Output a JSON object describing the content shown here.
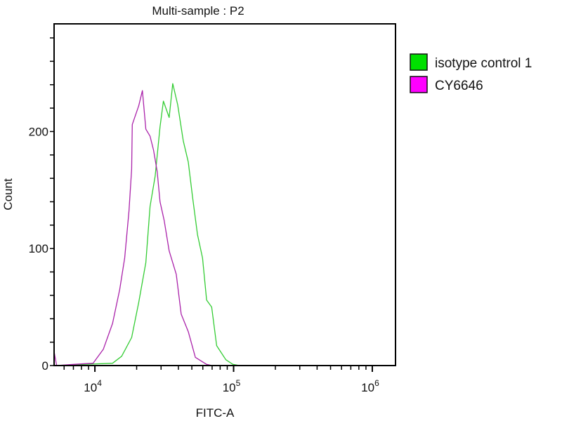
{
  "chart_data": {
    "type": "line",
    "title": "Multi-sample : P2",
    "xlabel": "FITC-A",
    "ylabel": "Count",
    "xscale": "log",
    "xlim": [
      5080,
      1470000
    ],
    "ylim": [
      0,
      292
    ],
    "x_major_ticks": [
      {
        "value": 10000,
        "base": "10",
        "exp": "4"
      },
      {
        "value": 100000,
        "base": "10",
        "exp": "5"
      },
      {
        "value": 1000000,
        "base": "10",
        "exp": "6"
      }
    ],
    "y_ticks": [
      {
        "value": 0,
        "label": "0"
      },
      {
        "value": 100,
        "label": "100"
      },
      {
        "value": 200,
        "label": "200"
      }
    ],
    "y_minor_step": 20,
    "grid": false,
    "legend_position": "right",
    "series": [
      {
        "name": "isotype control 1",
        "color": "#00e000",
        "line_color": "#33cc33",
        "points": [
          [
            5080,
            0
          ],
          [
            13400,
            2
          ],
          [
            15600,
            8
          ],
          [
            18400,
            24
          ],
          [
            20700,
            54
          ],
          [
            23300,
            88
          ],
          [
            25000,
            136
          ],
          [
            27200,
            162
          ],
          [
            29500,
            204
          ],
          [
            31200,
            226
          ],
          [
            34300,
            212
          ],
          [
            36400,
            241
          ],
          [
            39500,
            223
          ],
          [
            43400,
            192
          ],
          [
            47100,
            174
          ],
          [
            50600,
            144
          ],
          [
            54900,
            112
          ],
          [
            59700,
            92
          ],
          [
            63900,
            56
          ],
          [
            69500,
            50
          ],
          [
            75500,
            17
          ],
          [
            87900,
            5
          ],
          [
            98900,
            1
          ],
          [
            110000,
            0
          ],
          [
            1470000,
            0
          ]
        ]
      },
      {
        "name": "CY6646",
        "color": "#ff00ff",
        "line_color": "#aa22aa",
        "points": [
          [
            5080,
            12
          ],
          [
            5300,
            0
          ],
          [
            7000,
            1
          ],
          [
            9700,
            2
          ],
          [
            11500,
            14
          ],
          [
            13400,
            36
          ],
          [
            15100,
            65
          ],
          [
            16400,
            92
          ],
          [
            17600,
            132
          ],
          [
            18400,
            168
          ],
          [
            18600,
            206
          ],
          [
            20700,
            222
          ],
          [
            22000,
            235
          ],
          [
            23300,
            202
          ],
          [
            25000,
            196
          ],
          [
            26500,
            184
          ],
          [
            28100,
            166
          ],
          [
            29500,
            140
          ],
          [
            31600,
            124
          ],
          [
            34300,
            98
          ],
          [
            38600,
            78
          ],
          [
            41900,
            44
          ],
          [
            47100,
            29
          ],
          [
            53000,
            7
          ],
          [
            63900,
            1
          ],
          [
            70000,
            0
          ],
          [
            1470000,
            0
          ]
        ]
      }
    ]
  }
}
